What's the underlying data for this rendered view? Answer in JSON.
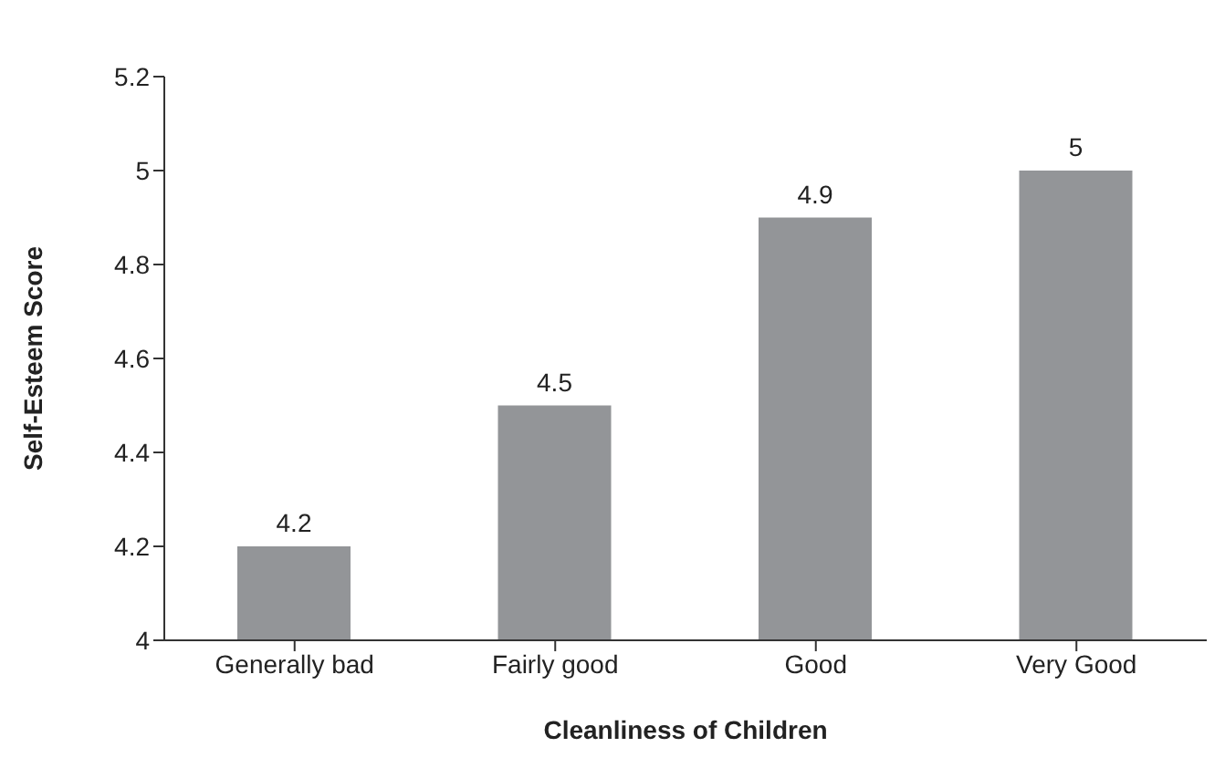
{
  "chart_data": {
    "type": "bar",
    "xlabel": "Cleanliness of Children",
    "ylabel": "Self-Esteem Score",
    "categories": [
      "Generally bad",
      "Fairly good",
      "Good",
      "Very Good"
    ],
    "values": [
      4.2,
      4.5,
      4.9,
      5
    ],
    "color": "#939598",
    "ylim": [
      4,
      5.2
    ],
    "yticks": [
      4,
      4.2,
      4.4,
      4.6,
      4.8,
      5,
      5.2
    ],
    "grid": false,
    "data_labels": true
  }
}
